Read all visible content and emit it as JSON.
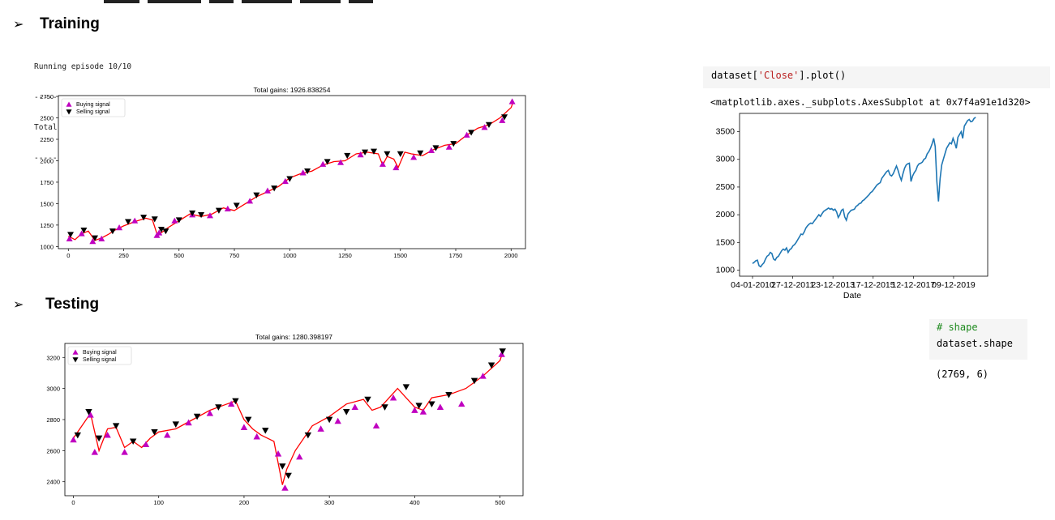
{
  "sections": {
    "training_label": "Training",
    "testing_label": "Testing",
    "bullet_glyph": "➢"
  },
  "training_log": {
    "line1": "Running episode 10/10",
    "separator1": "--------------------------------",
    "line2": "Total Profit: $1926.84",
    "separator2": "--------------------------------"
  },
  "notebook": {
    "code1": "dataset[",
    "code1_string": "'Close'",
    "code1_tail": "].plot()",
    "output1": "<matplotlib.axes._subplots.AxesSubplot at 0x7f4a91e1d320>",
    "code2_comment": "# shape",
    "code2": "dataset.shape",
    "output2": "(2769, 6)"
  },
  "colors": {
    "buy": "#c000c0",
    "sell": "#000000",
    "price_line": "#ff0000",
    "close_line": "#1f77b4"
  },
  "chart_data": [
    {
      "id": "training",
      "type": "line",
      "title": "Total gains: 1926.838254",
      "x_ticks": [
        0,
        250,
        500,
        750,
        1000,
        1250,
        1500,
        1750,
        2000
      ],
      "y_ticks": [
        1000,
        1250,
        1500,
        1750,
        2000,
        2250,
        2500,
        2750
      ],
      "xlim": [
        -45,
        2065
      ],
      "ylim": [
        975,
        2760
      ],
      "legend": [
        "Buying signal",
        "Selling signal"
      ],
      "legend_position": "upper-left",
      "series": [
        {
          "x": [
            0,
            30,
            60,
            90,
            120,
            150,
            180,
            210,
            250,
            300,
            350,
            380,
            400,
            420,
            450,
            500,
            550,
            600,
            650,
            700,
            750,
            800,
            850,
            900,
            950,
            1000,
            1050,
            1100,
            1150,
            1200,
            1250,
            1300,
            1350,
            1400,
            1420,
            1440,
            1470,
            1490,
            1520,
            1550,
            1600,
            1650,
            1700,
            1750,
            1800,
            1850,
            1900,
            1950,
            2000,
            2010
          ],
          "y": [
            1120,
            1080,
            1150,
            1180,
            1070,
            1100,
            1140,
            1190,
            1240,
            1290,
            1330,
            1310,
            1150,
            1160,
            1220,
            1300,
            1380,
            1350,
            1380,
            1450,
            1420,
            1500,
            1580,
            1640,
            1700,
            1800,
            1850,
            1880,
            1950,
            1990,
            2000,
            2080,
            2100,
            2080,
            1950,
            2050,
            2020,
            1920,
            2100,
            2080,
            2060,
            2130,
            2180,
            2200,
            2300,
            2380,
            2420,
            2500,
            2620,
            2690
          ]
        }
      ],
      "buy_points": {
        "x": [
          5,
          60,
          110,
          150,
          230,
          300,
          400,
          410,
          480,
          560,
          640,
          720,
          820,
          900,
          980,
          1060,
          1150,
          1230,
          1320,
          1420,
          1480,
          1560,
          1640,
          1720,
          1800,
          1880,
          1960,
          2005
        ],
        "y": [
          1090,
          1150,
          1060,
          1090,
          1220,
          1300,
          1130,
          1160,
          1300,
          1370,
          1360,
          1440,
          1530,
          1650,
          1760,
          1860,
          1960,
          1980,
          2070,
          1960,
          1920,
          2040,
          2120,
          2160,
          2300,
          2390,
          2470,
          2690
        ]
      },
      "sell_points": {
        "x": [
          10,
          70,
          120,
          200,
          270,
          340,
          390,
          420,
          440,
          500,
          560,
          600,
          680,
          760,
          850,
          930,
          1000,
          1080,
          1170,
          1260,
          1340,
          1380,
          1440,
          1500,
          1590,
          1660,
          1740,
          1820,
          1900,
          1970
        ],
        "y": [
          1140,
          1190,
          1100,
          1180,
          1290,
          1340,
          1320,
          1200,
          1180,
          1310,
          1390,
          1370,
          1420,
          1480,
          1600,
          1680,
          1790,
          1880,
          1990,
          2060,
          2100,
          2110,
          2080,
          2080,
          2090,
          2150,
          2200,
          2330,
          2420,
          2510
        ]
      }
    },
    {
      "id": "testing",
      "type": "line",
      "title": "Total gains: 1280.398197",
      "x_ticks": [
        0,
        100,
        200,
        300,
        400,
        500
      ],
      "y_ticks": [
        2400,
        2600,
        2800,
        3000,
        3200
      ],
      "xlim": [
        -10,
        527
      ],
      "ylim": [
        2310,
        3290
      ],
      "legend": [
        "Buying signal",
        "Selling signal"
      ],
      "legend_position": "upper-left",
      "series": [
        {
          "x": [
            0,
            10,
            20,
            25,
            30,
            40,
            50,
            60,
            70,
            80,
            90,
            100,
            120,
            140,
            160,
            180,
            190,
            200,
            210,
            220,
            235,
            245,
            250,
            260,
            280,
            300,
            320,
            340,
            350,
            360,
            380,
            400,
            410,
            420,
            440,
            460,
            480,
            500,
            503
          ],
          "y": [
            2680,
            2760,
            2840,
            2720,
            2600,
            2740,
            2750,
            2620,
            2660,
            2620,
            2680,
            2720,
            2740,
            2800,
            2860,
            2900,
            2920,
            2800,
            2740,
            2700,
            2660,
            2380,
            2480,
            2600,
            2760,
            2820,
            2900,
            2930,
            2860,
            2880,
            3000,
            2880,
            2860,
            2940,
            2960,
            3000,
            3080,
            3180,
            3230
          ]
        }
      ],
      "buy_points": {
        "x": [
          0,
          20,
          25,
          40,
          60,
          85,
          110,
          135,
          160,
          185,
          200,
          215,
          240,
          248,
          265,
          290,
          310,
          330,
          355,
          375,
          400,
          410,
          430,
          455,
          480,
          502
        ],
        "y": [
          2670,
          2830,
          2590,
          2700,
          2590,
          2640,
          2700,
          2780,
          2840,
          2900,
          2750,
          2690,
          2580,
          2360,
          2560,
          2740,
          2790,
          2880,
          2760,
          2940,
          2860,
          2850,
          2880,
          2900,
          3080,
          3220
        ]
      },
      "sell_points": {
        "x": [
          5,
          18,
          30,
          50,
          70,
          95,
          120,
          145,
          170,
          190,
          205,
          225,
          245,
          252,
          275,
          300,
          320,
          345,
          365,
          390,
          405,
          420,
          440,
          470,
          490,
          503
        ],
        "y": [
          2700,
          2850,
          2680,
          2760,
          2660,
          2720,
          2770,
          2820,
          2880,
          2920,
          2800,
          2730,
          2500,
          2440,
          2700,
          2800,
          2850,
          2930,
          2880,
          3010,
          2890,
          2900,
          2960,
          3050,
          3150,
          3240
        ]
      }
    },
    {
      "id": "close",
      "type": "line",
      "x_ticks": [
        "04-01-2010",
        "27-12-2011",
        "23-12-2013",
        "17-12-2015",
        "12-12-2017",
        "09-12-2019"
      ],
      "y_ticks": [
        1000,
        1500,
        2000,
        2500,
        3000,
        3500
      ],
      "xlabel": "Date",
      "ylim": [
        890,
        3830
      ],
      "series": [
        {
          "x": [
            0,
            20,
            40,
            60,
            80,
            100,
            120,
            140,
            160,
            180,
            200,
            220,
            240,
            260,
            280,
            300,
            320,
            340,
            360,
            380,
            400,
            420,
            440,
            460,
            480,
            500,
            520,
            540,
            560,
            580,
            600,
            620,
            640,
            660,
            680,
            700,
            720,
            740,
            760,
            780,
            800,
            820,
            840,
            860,
            880,
            900,
            920,
            940,
            960,
            980,
            1000,
            1020,
            1040,
            1060,
            1080,
            1100,
            1120,
            1140,
            1160,
            1180,
            1200,
            1220,
            1240,
            1260,
            1280,
            1300,
            1320,
            1340,
            1360,
            1380,
            1400,
            1420,
            1440,
            1460,
            1480,
            1500,
            1520,
            1540,
            1560,
            1580,
            1600,
            1620,
            1640,
            1660,
            1680,
            1700,
            1720,
            1740,
            1760,
            1780,
            1800,
            1820,
            1840,
            1860,
            1880,
            1900,
            1920,
            1940,
            1960,
            1980,
            2000,
            2020,
            2040,
            2060,
            2080,
            2100,
            2120,
            2140,
            2160,
            2180,
            2200,
            2220,
            2240,
            2260,
            2280,
            2300,
            2320,
            2340,
            2360,
            2380,
            2400,
            2420,
            2440,
            2460,
            2480,
            2500,
            2520,
            2540,
            2560,
            2580,
            2600,
            2620,
            2640,
            2660,
            2680,
            2700,
            2720,
            2740,
            2760
          ],
          "y": [
            1120,
            1140,
            1170,
            1180,
            1080,
            1060,
            1100,
            1130,
            1200,
            1250,
            1270,
            1320,
            1300,
            1200,
            1180,
            1230,
            1250,
            1300,
            1350,
            1380,
            1360,
            1400,
            1320,
            1370,
            1390,
            1440,
            1460,
            1500,
            1550,
            1600,
            1650,
            1640,
            1690,
            1760,
            1800,
            1830,
            1850,
            1840,
            1880,
            1920,
            1960,
            2000,
            1970,
            2020,
            2060,
            2080,
            2100,
            2120,
            2100,
            2110,
            2080,
            2100,
            2050,
            1950,
            2000,
            2080,
            2100,
            1960,
            1900,
            2010,
            2050,
            2080,
            2090,
            2100,
            2150,
            2170,
            2200,
            2210,
            2250,
            2270,
            2300,
            2330,
            2360,
            2400,
            2420,
            2460,
            2500,
            2540,
            2560,
            2580,
            2660,
            2700,
            2740,
            2780,
            2800,
            2720,
            2700,
            2740,
            2810,
            2880,
            2800,
            2700,
            2620,
            2740,
            2840,
            2900,
            2920,
            2930,
            2600,
            2700,
            2760,
            2800,
            2880,
            2920,
            2930,
            2950,
            3000,
            3020,
            3100,
            3140,
            3200,
            3280,
            3380,
            3230,
            2600,
            2240,
            2650,
            2900,
            3000,
            3100,
            3200,
            3250,
            3300,
            3280,
            3380,
            3300,
            3200,
            3400,
            3450,
            3500,
            3380,
            3600,
            3650,
            3700,
            3720,
            3680,
            3690,
            3740,
            3760
          ]
        }
      ]
    }
  ]
}
